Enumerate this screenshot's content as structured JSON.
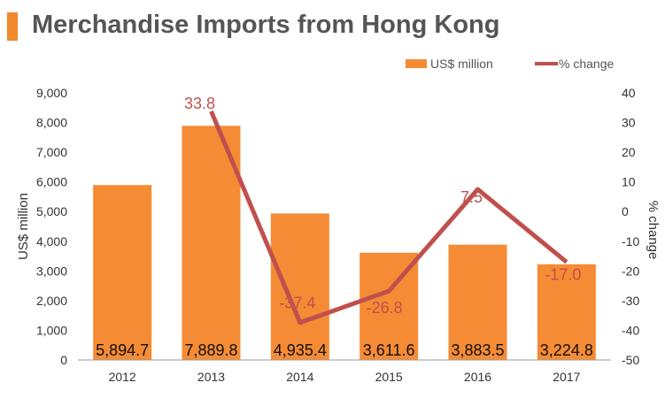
{
  "header": {
    "title": "Merchandise Imports from Hong Kong"
  },
  "colors": {
    "accent": "#f08a2c",
    "bar": "#f58b34",
    "line": "#c0504d",
    "title_text": "#555555"
  },
  "legend": {
    "position": "top-right",
    "bar_label": "US$ million",
    "line_label": "% change"
  },
  "chart_data": {
    "type": "bar",
    "title": "Merchandise Imports from Hong Kong",
    "categories": [
      "2012",
      "2013",
      "2014",
      "2015",
      "2016",
      "2017"
    ],
    "series": [
      {
        "name": "US$ million",
        "type": "bar",
        "axis": "left",
        "values": [
          5894.7,
          7889.8,
          4935.4,
          3611.6,
          3883.5,
          3224.8
        ],
        "labels": [
          "5,894.7",
          "7,889.8",
          "4,935.4",
          "3,611.6",
          "3,883.5",
          "3,224.8"
        ]
      },
      {
        "name": "% change",
        "type": "line",
        "axis": "right",
        "values": [
          null,
          33.8,
          -37.4,
          -26.8,
          7.5,
          -17.0
        ],
        "labels": [
          "",
          "33.8",
          "-37.4",
          "-26.8",
          "7.5",
          "-17.0"
        ]
      }
    ],
    "ylabel": "US$ million",
    "ylim": [
      0,
      9000
    ],
    "y_ticks": [
      "0",
      "1,000",
      "2,000",
      "3,000",
      "4,000",
      "5,000",
      "6,000",
      "7,000",
      "8,000",
      "9,000"
    ],
    "y2label": "% change",
    "y2lim": [
      -50,
      40
    ],
    "y2_ticks": [
      "-50",
      "-40",
      "-30",
      "-20",
      "-10",
      "0",
      "10",
      "20",
      "30",
      "40"
    ],
    "grid": false
  }
}
